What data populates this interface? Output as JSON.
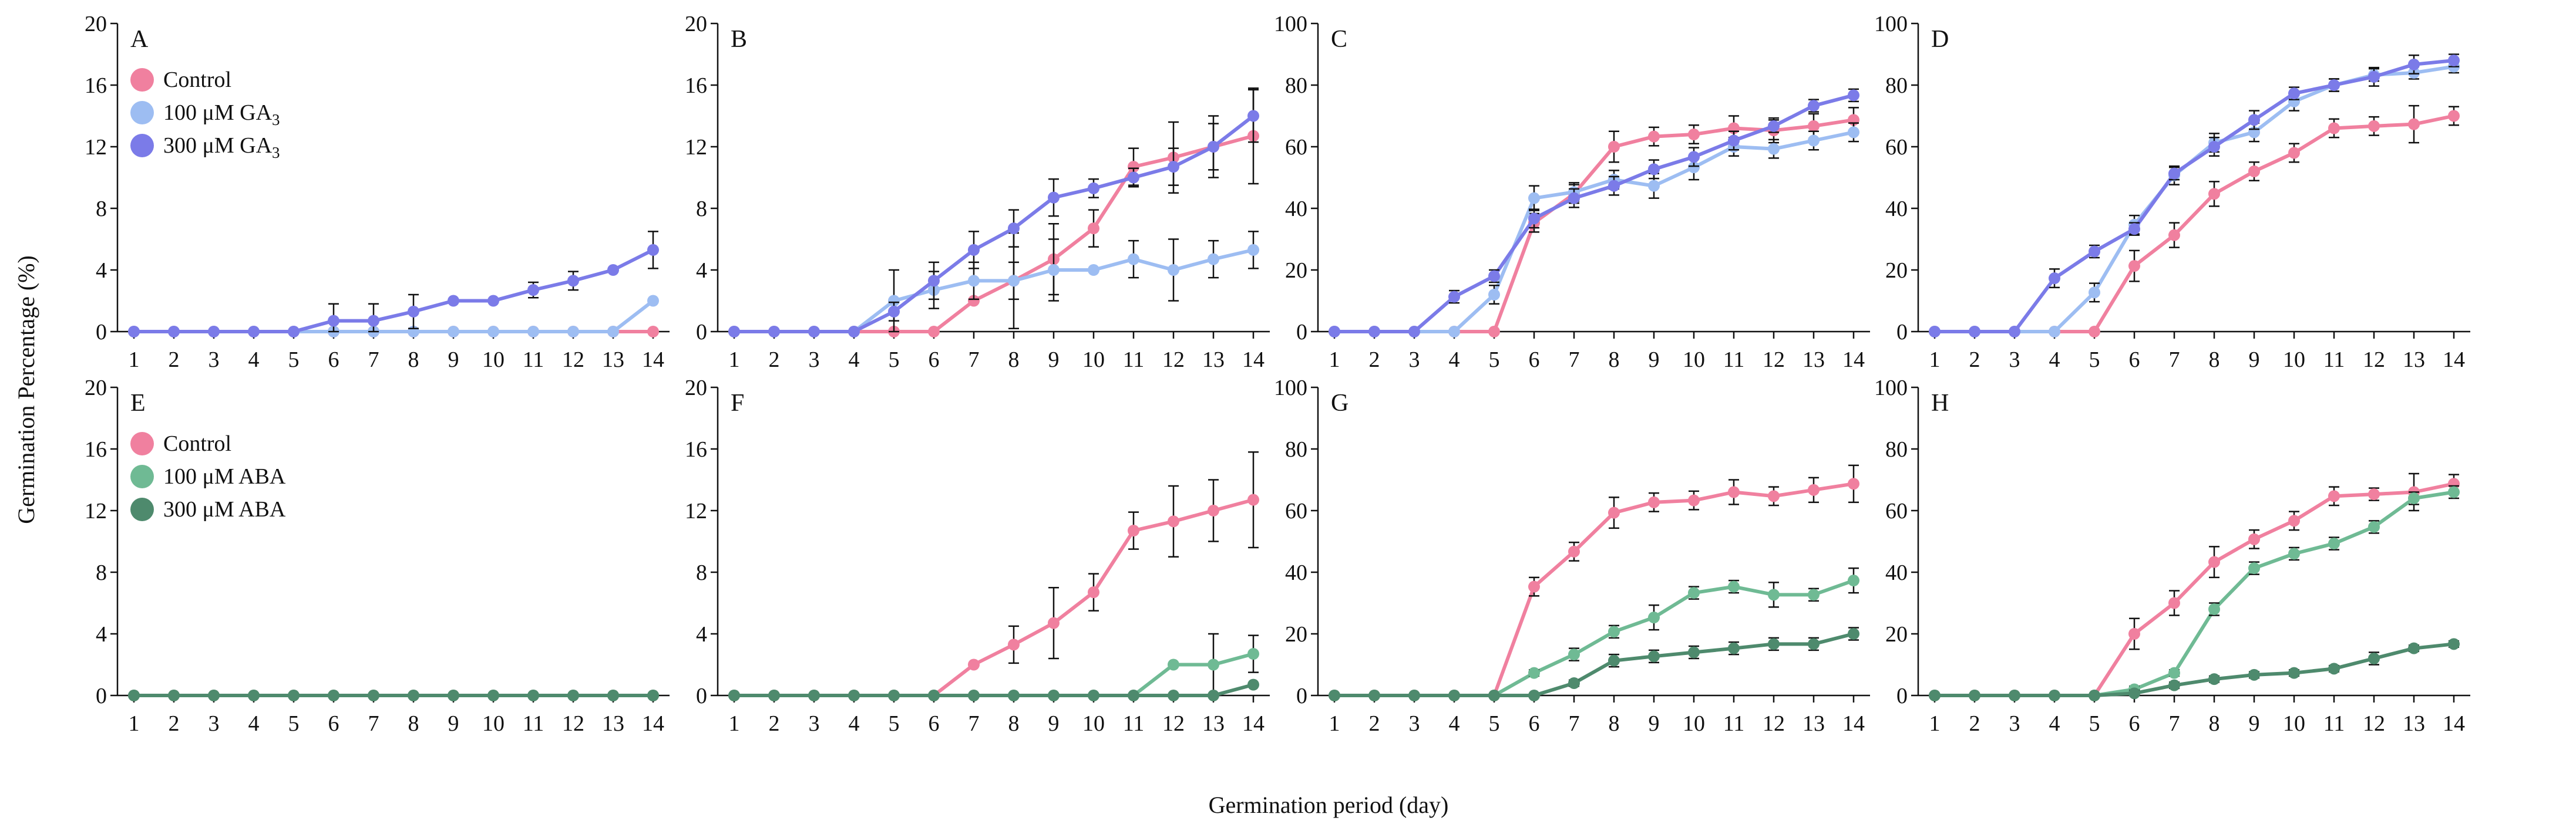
{
  "chart_data": {
    "type": "line",
    "ylabel": "Germination Percentage (%)",
    "xlabel": "Germination period (day)",
    "x": [
      1,
      2,
      3,
      4,
      5,
      6,
      7,
      8,
      9,
      10,
      11,
      12,
      13,
      14
    ],
    "x_tick_labels": [
      "1",
      "2",
      "3",
      "4",
      "5",
      "6",
      "7",
      "8",
      "9",
      "10",
      "11",
      "12",
      "13",
      "14"
    ],
    "colors": {
      "Control": "#f0809f",
      "GA100": "#9dbdf2",
      "GA300": "#7b7be8",
      "ABA100": "#6fba94",
      "ABA300": "#4e8a6d"
    },
    "legends": {
      "ga": [
        {
          "label": "Control",
          "color_key": "Control"
        },
        {
          "label": "100 μM GA",
          "sub": "3",
          "color_key": "GA100"
        },
        {
          "label": "300 μM GA",
          "sub": "3",
          "color_key": "GA300"
        }
      ],
      "aba": [
        {
          "label": "Control",
          "color_key": "Control"
        },
        {
          "label": "100 μM ABA",
          "sub": "",
          "color_key": "ABA100"
        },
        {
          "label": "300 μM ABA",
          "sub": "",
          "color_key": "ABA300"
        }
      ]
    },
    "panels": [
      {
        "id": "A",
        "ylim": [
          0,
          20
        ],
        "yticks": [
          "0",
          "4",
          "8",
          "12",
          "16",
          "20"
        ],
        "legend": "ga",
        "series": [
          {
            "name": "Control",
            "color_key": "Control",
            "values": [
              0,
              0,
              0,
              0,
              0,
              0,
              0,
              0,
              0,
              0,
              0,
              0,
              0,
              0
            ],
            "err": [
              0,
              0,
              0,
              0,
              0,
              0,
              0,
              0,
              0,
              0,
              0,
              0,
              0,
              0
            ]
          },
          {
            "name": "100 μM GA3",
            "color_key": "GA100",
            "values": [
              0,
              0,
              0,
              0,
              0,
              0,
              0,
              0,
              0,
              0,
              0,
              0,
              0,
              2.0
            ],
            "err": [
              0,
              0,
              0,
              0,
              0,
              0,
              0,
              0,
              0,
              0,
              0,
              0,
              0,
              0
            ]
          },
          {
            "name": "300 μM GA3",
            "color_key": "GA300",
            "values": [
              0,
              0,
              0,
              0,
              0,
              0.7,
              0.7,
              1.3,
              2.0,
              2.0,
              2.7,
              3.3,
              4.0,
              5.3
            ],
            "err": [
              0,
              0,
              0,
              0,
              0,
              1.1,
              1.1,
              1.1,
              0,
              0,
              0.5,
              0.6,
              0,
              1.2
            ]
          }
        ]
      },
      {
        "id": "B",
        "ylim": [
          0,
          20
        ],
        "yticks": [
          "0",
          "4",
          "8",
          "12",
          "16",
          "20"
        ],
        "legend": null,
        "series": [
          {
            "name": "Control",
            "color_key": "Control",
            "values": [
              0,
              0,
              0,
              0,
              0,
              0,
              2.0,
              3.3,
              4.7,
              6.7,
              10.7,
              11.3,
              12.0,
              12.7
            ],
            "err": [
              0,
              0,
              0,
              0,
              0,
              0,
              0,
              1.2,
              2.3,
              1.2,
              1.2,
              2.3,
              2.0,
              3.1
            ]
          },
          {
            "name": "100 μM GA3",
            "color_key": "GA100",
            "values": [
              0,
              0,
              0,
              0,
              2.0,
              2.7,
              3.3,
              3.3,
              4.0,
              4.0,
              4.7,
              4.0,
              4.7,
              5.3
            ],
            "err": [
              0,
              0,
              0,
              0,
              2.0,
              1.2,
              1.2,
              3.1,
              2.0,
              0,
              1.2,
              2.0,
              1.2,
              1.2
            ]
          },
          {
            "name": "300 μM GA3",
            "color_key": "GA300",
            "values": [
              0,
              0,
              0,
              0,
              1.3,
              3.3,
              5.3,
              6.7,
              8.7,
              9.3,
              10.0,
              10.7,
              12.0,
              14.0
            ],
            "err": [
              0,
              0,
              0,
              0,
              0.6,
              1.2,
              1.2,
              1.2,
              1.2,
              0.6,
              0.6,
              1.2,
              1.5,
              1.7
            ]
          }
        ]
      },
      {
        "id": "C",
        "ylim": [
          0,
          100
        ],
        "yticks": [
          "0",
          "20",
          "40",
          "60",
          "80",
          "100"
        ],
        "legend": null,
        "series": [
          {
            "name": "Control",
            "color_key": "Control",
            "values": [
              0,
              0,
              0,
              0,
              0,
              35.3,
              44.7,
              60.0,
              63.3,
              64.0,
              66.0,
              65.3,
              66.7,
              68.7
            ],
            "err": [
              0,
              0,
              0,
              0,
              0,
              3,
              3,
              5,
              3,
              3,
              4,
              4,
              4,
              4
            ]
          },
          {
            "name": "100 μM GA3",
            "color_key": "GA100",
            "values": [
              0,
              0,
              0,
              0,
              12.0,
              43.3,
              45.3,
              49.3,
              47.3,
              53.3,
              60.0,
              59.3,
              62.0,
              64.7
            ],
            "err": [
              0,
              0,
              0,
              0,
              3,
              4,
              3,
              3,
              4,
              4,
              3,
              3,
              3,
              3
            ]
          },
          {
            "name": "300 μM GA3",
            "color_key": "GA300",
            "values": [
              0,
              0,
              0,
              11.3,
              18.0,
              36.7,
              43.3,
              47.3,
              52.7,
              56.7,
              62.0,
              66.7,
              73.3,
              76.7
            ],
            "err": [
              0,
              0,
              0,
              2,
              2,
              3,
              3,
              3,
              3,
              3,
              3,
              2,
              2,
              2
            ]
          }
        ]
      },
      {
        "id": "D",
        "ylim": [
          0,
          100
        ],
        "yticks": [
          "0",
          "20",
          "40",
          "60",
          "80",
          "100"
        ],
        "legend": null,
        "series": [
          {
            "name": "Control",
            "color_key": "Control",
            "values": [
              0,
              0,
              0,
              0,
              0,
              21.3,
              31.3,
              44.7,
              52.0,
              58.0,
              66.0,
              66.7,
              67.3,
              70.0
            ],
            "err": [
              0,
              0,
              0,
              0,
              0,
              5,
              4,
              4,
              3,
              3,
              3,
              3,
              6,
              3
            ]
          },
          {
            "name": "100 μM GA3",
            "color_key": "GA100",
            "values": [
              0,
              0,
              0,
              0,
              12.7,
              34.7,
              50.7,
              61.3,
              64.7,
              74.7,
              80.0,
              83.3,
              84.0,
              86.0
            ],
            "err": [
              0,
              0,
              0,
              0,
              3,
              3,
              3,
              3,
              3,
              3,
              2,
              2,
              2,
              2
            ]
          },
          {
            "name": "300 μM GA3",
            "color_key": "GA300",
            "values": [
              0,
              0,
              0,
              17.3,
              26.0,
              33.3,
              51.3,
              60.0,
              68.7,
              77.3,
              80.0,
              82.7,
              86.7,
              88.0
            ],
            "err": [
              0,
              0,
              0,
              3,
              2,
              2,
              2,
              3,
              3,
              2,
              2,
              3,
              3,
              2
            ]
          }
        ]
      },
      {
        "id": "E",
        "ylim": [
          0,
          20
        ],
        "yticks": [
          "0",
          "4",
          "8",
          "12",
          "16",
          "20"
        ],
        "legend": "aba",
        "series": [
          {
            "name": "Control",
            "color_key": "Control",
            "values": [
              0,
              0,
              0,
              0,
              0,
              0,
              0,
              0,
              0,
              0,
              0,
              0,
              0,
              0
            ],
            "err": [
              0,
              0,
              0,
              0,
              0,
              0,
              0,
              0,
              0,
              0,
              0,
              0,
              0,
              0
            ]
          },
          {
            "name": "100 μM ABA",
            "color_key": "ABA100",
            "values": [
              0,
              0,
              0,
              0,
              0,
              0,
              0,
              0,
              0,
              0,
              0,
              0,
              0,
              0
            ],
            "err": [
              0,
              0,
              0,
              0,
              0,
              0,
              0,
              0,
              0,
              0,
              0,
              0,
              0,
              0
            ]
          },
          {
            "name": "300 μM ABA",
            "color_key": "ABA300",
            "values": [
              0,
              0,
              0,
              0,
              0,
              0,
              0,
              0,
              0,
              0,
              0,
              0,
              0,
              0
            ],
            "err": [
              0,
              0,
              0,
              0,
              0,
              0,
              0,
              0,
              0,
              0,
              0,
              0,
              0,
              0
            ]
          }
        ]
      },
      {
        "id": "F",
        "ylim": [
          0,
          20
        ],
        "yticks": [
          "0",
          "4",
          "8",
          "12",
          "16",
          "20"
        ],
        "legend": null,
        "series": [
          {
            "name": "Control",
            "color_key": "Control",
            "values": [
              0,
              0,
              0,
              0,
              0,
              0,
              2.0,
              3.3,
              4.7,
              6.7,
              10.7,
              11.3,
              12.0,
              12.7
            ],
            "err": [
              0,
              0,
              0,
              0,
              0,
              0,
              0,
              1.2,
              2.3,
              1.2,
              1.2,
              2.3,
              2.0,
              3.1
            ]
          },
          {
            "name": "100 μM ABA",
            "color_key": "ABA100",
            "values": [
              0,
              0,
              0,
              0,
              0,
              0,
              0,
              0,
              0,
              0,
              0,
              2.0,
              2.0,
              2.7
            ],
            "err": [
              0,
              0,
              0,
              0,
              0,
              0,
              0,
              0,
              0,
              0,
              0,
              0,
              2.0,
              1.2
            ]
          },
          {
            "name": "300 μM ABA",
            "color_key": "ABA300",
            "values": [
              0,
              0,
              0,
              0,
              0,
              0,
              0,
              0,
              0,
              0,
              0,
              0,
              0,
              0.7
            ],
            "err": [
              0,
              0,
              0,
              0,
              0,
              0,
              0,
              0,
              0,
              0,
              0,
              0,
              0,
              0
            ]
          }
        ]
      },
      {
        "id": "G",
        "ylim": [
          0,
          100
        ],
        "yticks": [
          "0",
          "20",
          "40",
          "60",
          "80",
          "100"
        ],
        "legend": null,
        "series": [
          {
            "name": "Control",
            "color_key": "Control",
            "values": [
              0,
              0,
              0,
              0,
              0,
              35.3,
              46.7,
              59.3,
              62.7,
              63.3,
              66.0,
              64.7,
              66.7,
              68.7
            ],
            "err": [
              0,
              0,
              0,
              0,
              0,
              3,
              3,
              5,
              3,
              3,
              4,
              3,
              4,
              6
            ]
          },
          {
            "name": "100 μM ABA",
            "color_key": "ABA100",
            "values": [
              0,
              0,
              0,
              0,
              0,
              7.3,
              13.3,
              20.7,
              25.3,
              33.3,
              35.3,
              32.7,
              32.7,
              37.3
            ],
            "err": [
              0,
              0,
              0,
              0,
              0,
              1,
              2,
              2,
              4,
              2,
              2,
              4,
              2,
              4
            ]
          },
          {
            "name": "300 μM ABA",
            "color_key": "ABA300",
            "values": [
              0,
              0,
              0,
              0,
              0,
              0,
              4.0,
              11.3,
              12.7,
              14.0,
              15.3,
              16.7,
              16.7,
              20.0
            ],
            "err": [
              0,
              0,
              0,
              0,
              0,
              0,
              1,
              2,
              2,
              2,
              2,
              2,
              2,
              2
            ]
          }
        ]
      },
      {
        "id": "H",
        "ylim": [
          0,
          100
        ],
        "yticks": [
          "0",
          "20",
          "40",
          "60",
          "80",
          "100"
        ],
        "legend": null,
        "series": [
          {
            "name": "Control",
            "color_key": "Control",
            "values": [
              0,
              0,
              0,
              0,
              0,
              20.0,
              30.0,
              43.3,
              50.7,
              56.7,
              64.7,
              65.3,
              66.0,
              68.7
            ],
            "err": [
              0,
              0,
              0,
              0,
              0,
              5,
              4,
              5,
              3,
              3,
              3,
              2,
              6,
              3
            ]
          },
          {
            "name": "100 μM ABA",
            "color_key": "ABA100",
            "values": [
              0,
              0,
              0,
              0,
              0,
              2.0,
              7.3,
              28.0,
              41.3,
              46.0,
              49.3,
              54.7,
              64.0,
              66.0
            ],
            "err": [
              0,
              0,
              0,
              0,
              0,
              1,
              1,
              2,
              2,
              2,
              2,
              2,
              2,
              2
            ]
          },
          {
            "name": "300 μM ABA",
            "color_key": "ABA300",
            "values": [
              0,
              0,
              0,
              0,
              0,
              0.7,
              3.3,
              5.3,
              6.7,
              7.3,
              8.7,
              12.0,
              15.3,
              16.7
            ],
            "err": [
              0,
              0,
              0,
              0,
              0,
              1,
              1,
              1,
              1,
              1,
              1,
              2,
              1,
              1
            ]
          }
        ]
      }
    ]
  }
}
